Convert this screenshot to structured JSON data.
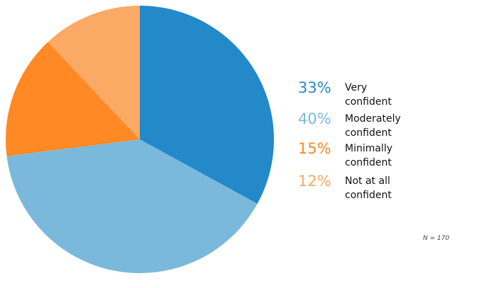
{
  "chart_data": {
    "type": "pie",
    "slices": [
      {
        "percent_label": "33%",
        "label": "Very confident",
        "value": 33,
        "color": "#2389c9"
      },
      {
        "percent_label": "40%",
        "label": "Moderately confident",
        "value": 40,
        "color": "#7ab9db"
      },
      {
        "percent_label": "15%",
        "label": "Minimally confident",
        "value": 15,
        "color": "#ff8a25"
      },
      {
        "percent_label": "12%",
        "label": "Not at all confident",
        "value": 12,
        "color": "#fbaa65"
      }
    ],
    "start_angle_deg": 0,
    "direction": "clockwise",
    "legend_position": "right",
    "note": "N = 170"
  }
}
